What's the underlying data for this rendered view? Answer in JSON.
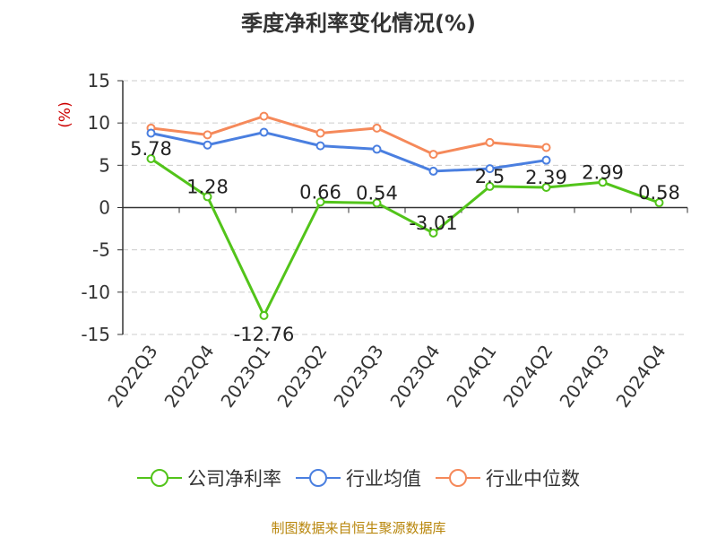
{
  "title": "季度净利率变化情况(%)",
  "source": "制图数据来自恒生聚源数据库",
  "colors": {
    "source": "#b8860b",
    "ylabel": "#cc0000"
  },
  "chart_data": {
    "type": "line",
    "ylabel": "(%)",
    "ylim": [
      -15,
      15
    ],
    "yticks": [
      15,
      10,
      5,
      0,
      -5,
      -10,
      -15
    ],
    "grid": true,
    "legend_position": "bottom",
    "categories": [
      "2022Q3",
      "2022Q4",
      "2023Q1",
      "2023Q2",
      "2023Q3",
      "2023Q4",
      "2024Q1",
      "2024Q2",
      "2024Q3",
      "2024Q4"
    ],
    "series": [
      {
        "name": "公司净利率",
        "color": "#52c41a",
        "show_labels": true,
        "values": [
          5.78,
          1.28,
          -12.76,
          0.66,
          0.54,
          -3.01,
          2.5,
          2.39,
          2.99,
          0.58
        ]
      },
      {
        "name": "行业均值",
        "color": "#4a7fe0",
        "show_labels": false,
        "values": [
          8.8,
          7.4,
          8.9,
          7.3,
          6.9,
          4.3,
          4.6,
          5.6,
          null,
          null
        ]
      },
      {
        "name": "行业中位数",
        "color": "#f5895a",
        "show_labels": false,
        "values": [
          9.4,
          8.6,
          10.8,
          8.8,
          9.4,
          6.3,
          7.7,
          7.1,
          null,
          null
        ]
      }
    ]
  }
}
